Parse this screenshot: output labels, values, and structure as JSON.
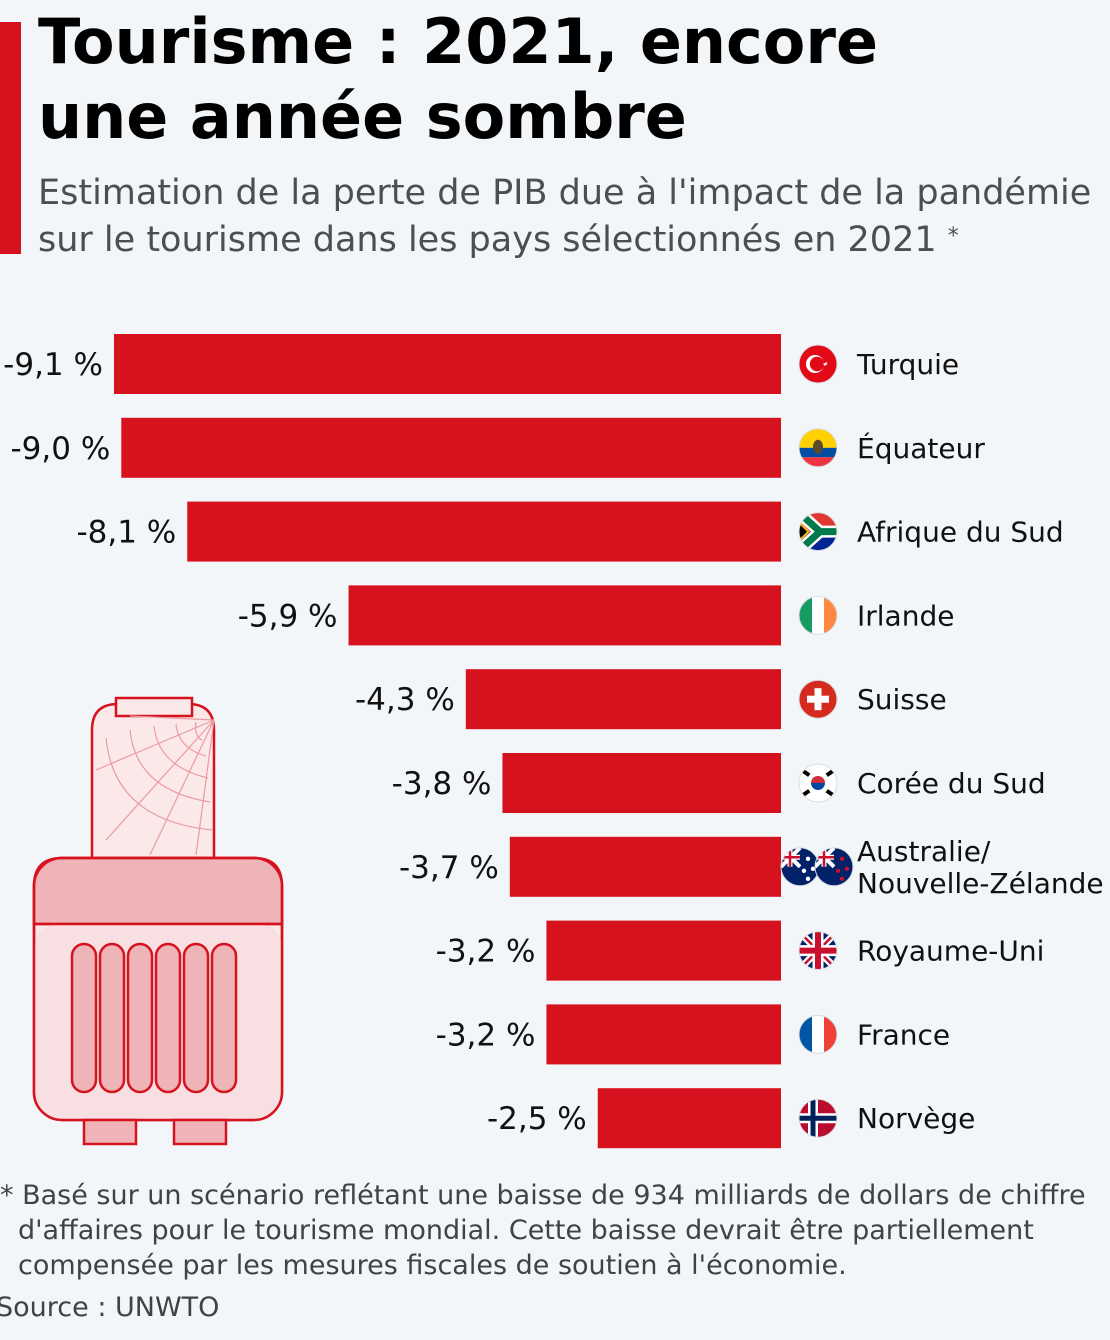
{
  "header": {
    "title_lines": [
      "Tourisme : 2021, encore",
      "une année sombre"
    ],
    "subtitle_lines": [
      "Estimation de la perte de PIB due à l'impact de la pandémie",
      "sur le tourisme dans les pays sélectionnés en 2021"
    ],
    "subtitle_mark": "*"
  },
  "chart_data": {
    "type": "bar",
    "orientation": "horizontal",
    "categories": [
      "Turquie",
      "Équateur",
      "Afrique du Sud",
      "Irlande",
      "Suisse",
      "Corée du Sud",
      "Australie/ Nouvelle-Zélande",
      "Royaume-Uni",
      "France",
      "Norvège"
    ],
    "values": [
      -9.1,
      -9.0,
      -8.1,
      -5.9,
      -4.3,
      -3.8,
      -3.7,
      -3.2,
      -3.2,
      -2.5
    ],
    "value_labels": [
      "-9,1 %",
      "-9,0 %",
      "-8,1 %",
      "-5,9 %",
      "-4,3 %",
      "-3,8 %",
      "-3,7 %",
      "-3,2 %",
      "-3,2 %",
      "-2,5 %"
    ],
    "category_label_lines": [
      [
        "Turquie"
      ],
      [
        "Équateur"
      ],
      [
        "Afrique du Sud"
      ],
      [
        "Irlande"
      ],
      [
        "Suisse"
      ],
      [
        "Corée du Sud"
      ],
      [
        "Australie/",
        "Nouvelle-Zélande"
      ],
      [
        "Royaume-Uni"
      ],
      [
        "France"
      ],
      [
        "Norvège"
      ]
    ],
    "flag_icons": [
      "turkey-flag-icon",
      "ecuador-flag-icon",
      "south-africa-flag-icon",
      "ireland-flag-icon",
      "switzerland-flag-icon",
      "south-korea-flag-icon",
      "australia-new-zealand-flag-icon",
      "united-kingdom-flag-icon",
      "france-flag-icon",
      "norway-flag-icon"
    ],
    "bar_color": "#d7121f",
    "xlim": [
      -9.1,
      0
    ],
    "grid": false,
    "legend": "none"
  },
  "illustration": {
    "icon": "suitcase-with-cobweb-icon",
    "color": "#d7121f"
  },
  "footer": {
    "footnote_lines": [
      "* Basé sur un scénario reflétant une baisse de 934 milliards de dollars de chiffre",
      "d'affaires pour le tourisme mondial. Cette baisse devrait être partiellement",
      "compensée par les mesures fiscales de soutien à l'économie."
    ],
    "source": "Source : UNWTO"
  },
  "colors": {
    "accent": "#d7121f",
    "background": "#f3f6f9",
    "text": "#000000",
    "subtext": "#4a4f55"
  }
}
